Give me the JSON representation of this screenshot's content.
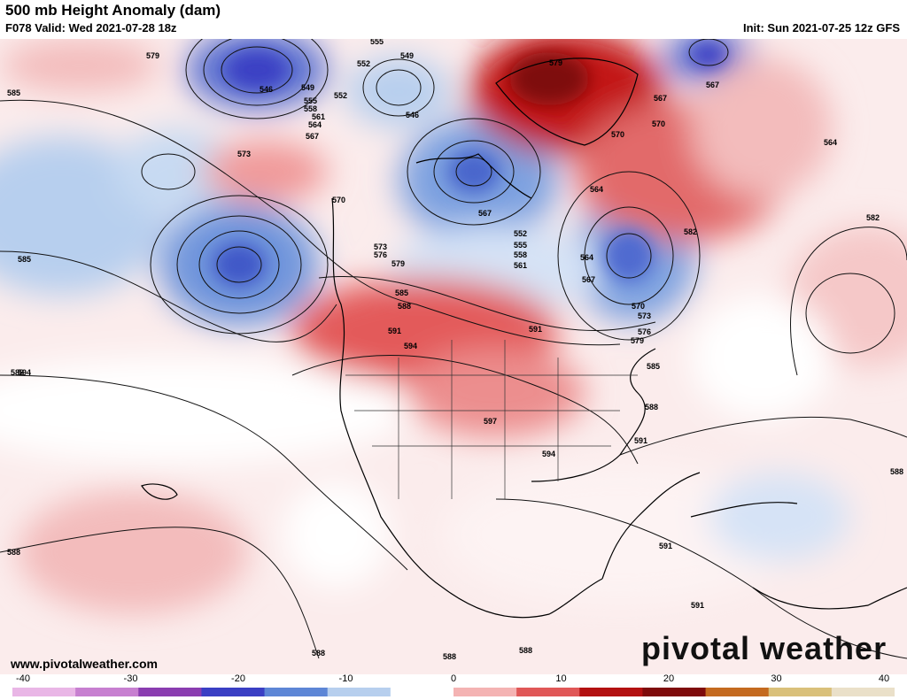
{
  "header": {
    "title": "500 mb Height Anomaly (dam)",
    "valid": "F078 Valid: Wed 2021-07-28 18z",
    "init": "Init: Sun 2021-07-25 12z GFS"
  },
  "footer": {
    "url": "www.pivotalweather.com",
    "brand": "pivotal weather"
  },
  "colorbar": {
    "ticks": [
      "-40",
      "-30",
      "-20",
      "-10",
      "0",
      "10",
      "20",
      "30",
      "40"
    ],
    "colors": [
      "#e9b6e6",
      "#c77fd0",
      "#8a3db0",
      "#3a3fc4",
      "#5d86d6",
      "#b7cfee",
      "#ffffff",
      "#f4b3b3",
      "#e05757",
      "#b31111",
      "#7e0b0b",
      "#c46a1f",
      "#d9c07a",
      "#eae0c9"
    ]
  },
  "contour_labels": [
    "579",
    "555",
    "549",
    "552",
    "546",
    "549",
    "552",
    "555",
    "558",
    "561",
    "564",
    "567",
    "573",
    "570",
    "567",
    "585",
    "585",
    "588",
    "588",
    "546",
    "573",
    "576",
    "579",
    "585",
    "588",
    "591",
    "594",
    "597",
    "594",
    "591",
    "582",
    "552",
    "555",
    "558",
    "561",
    "564",
    "567",
    "570",
    "573",
    "576",
    "579",
    "585",
    "588",
    "591",
    "579",
    "564",
    "567",
    "570",
    "570",
    "567",
    "564",
    "582",
    "591",
    "594",
    "588",
    "591",
    "588",
    "588",
    "588"
  ]
}
